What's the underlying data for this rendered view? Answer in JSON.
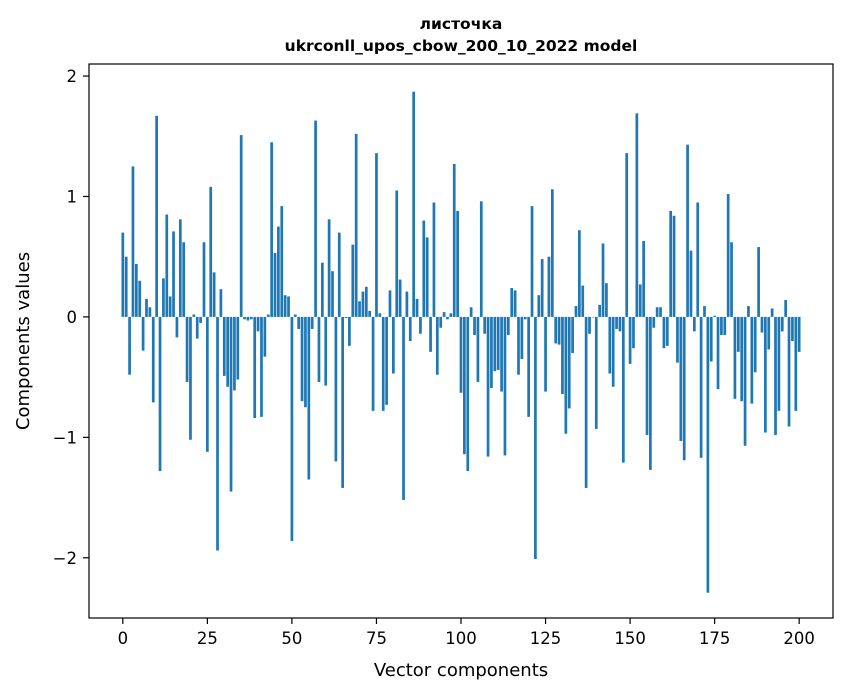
{
  "chart_data": {
    "type": "bar",
    "title": "листочка",
    "subtitle": "ukrconll_upos_cbow_200_10_2022 model",
    "xlabel": "Vector components",
    "ylabel": "Components values",
    "xlim": [
      -10,
      210
    ],
    "ylim": [
      -2.5,
      2.1
    ],
    "xticks": [
      0,
      25,
      50,
      75,
      100,
      125,
      150,
      175,
      200
    ],
    "yticks": [
      -2,
      -1,
      0,
      1,
      2
    ],
    "xtick_labels": [
      "0",
      "25",
      "50",
      "75",
      "100",
      "125",
      "150",
      "175",
      "200"
    ],
    "ytick_labels": [
      "−2",
      "−1",
      "0",
      "1",
      "2"
    ],
    "grid": false,
    "legend": "none",
    "bar_color": "#1f77b4",
    "series": [
      {
        "values": [
          0.7,
          0.5,
          -0.48,
          1.25,
          0.44,
          0.3,
          -0.28,
          0.15,
          0.08,
          -0.71,
          1.67,
          -1.28,
          0.32,
          0.85,
          0.17,
          0.71,
          -0.17,
          0.81,
          0.62,
          -0.54,
          -1.02,
          0.02,
          -0.18,
          -0.05,
          0.62,
          -1.12,
          1.08,
          0.37,
          -1.94,
          0.23,
          -0.49,
          -0.58,
          -1.45,
          -0.61,
          -0.52,
          1.51,
          -0.02,
          -0.03,
          -0.02,
          -0.84,
          -0.12,
          -0.83,
          -0.33,
          0.02,
          1.45,
          0.53,
          0.75,
          0.92,
          0.18,
          0.17,
          -1.86,
          0.02,
          -0.1,
          -0.7,
          -0.75,
          -1.35,
          -0.1,
          1.63,
          -0.54,
          0.45,
          -0.57,
          0.81,
          0.38,
          -1.2,
          0.7,
          -1.42,
          -0.01,
          -0.24,
          0.6,
          1.52,
          0.13,
          0.21,
          0.25,
          0.05,
          -0.78,
          1.36,
          0.03,
          -0.78,
          -0.73,
          0.22,
          -0.47,
          1.05,
          0.31,
          -1.52,
          0.21,
          -0.2,
          1.87,
          0.15,
          -0.14,
          0.8,
          0.66,
          -0.29,
          0.95,
          -0.48,
          -0.09,
          0.04,
          -0.02,
          0.03,
          1.27,
          0.88,
          -0.63,
          -1.14,
          -1.28,
          0.08,
          -0.15,
          -0.54,
          0.96,
          -0.14,
          -1.16,
          -0.59,
          -0.45,
          -0.44,
          -0.62,
          -1.15,
          -0.15,
          0.24,
          0.22,
          -0.48,
          -0.35,
          -0.02,
          -0.83,
          0.92,
          -2.01,
          0.18,
          0.48,
          -0.62,
          0.5,
          1.06,
          -0.22,
          -0.23,
          -0.64,
          -0.97,
          -0.76,
          -0.3,
          0.09,
          0.72,
          0.26,
          -1.42,
          -0.14,
          0.0,
          -0.93,
          0.1,
          0.61,
          0.28,
          -0.47,
          -0.58,
          -0.1,
          -0.12,
          -1.21,
          1.36,
          -0.39,
          -0.26,
          1.69,
          0.27,
          0.63,
          -0.98,
          -1.27,
          -0.09,
          0.08,
          0.08,
          -0.26,
          -0.24,
          0.88,
          0.84,
          -0.38,
          -1.03,
          -1.19,
          1.43,
          0.55,
          -0.12,
          0.95,
          -1.17,
          0.09,
          -2.29,
          -0.37,
          0.01,
          -0.6,
          -0.15,
          -0.15,
          1.02,
          0.62,
          -0.68,
          -0.29,
          -0.7,
          -1.07,
          0.09,
          -0.72,
          -0.46,
          0.58,
          -0.13,
          -0.96,
          -0.27,
          0.07,
          -0.98,
          -0.78,
          -0.12,
          0.14,
          -0.91,
          -0.2,
          -0.78,
          -0.29
        ]
      }
    ]
  }
}
